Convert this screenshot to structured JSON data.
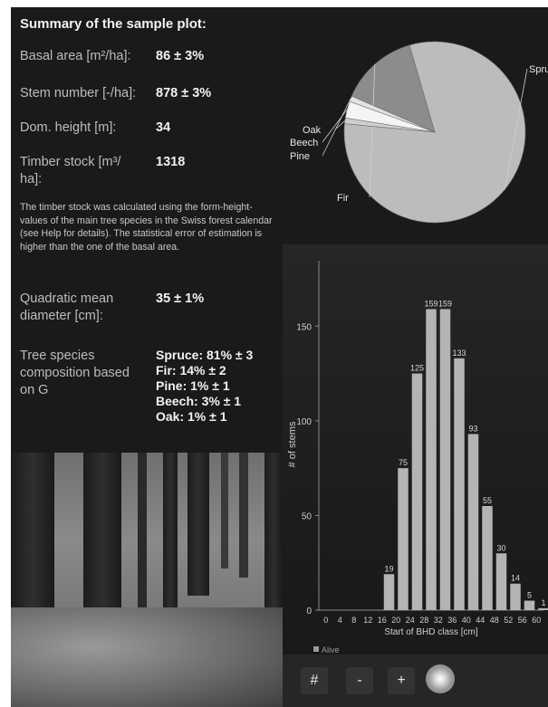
{
  "summary": {
    "title": "Summary of the sample plot:",
    "basal_area": {
      "label": "Basal area [m²/ha]:",
      "value": "86 ± 3%"
    },
    "stem_number": {
      "label": "Stem number [-/ha]:",
      "value": "878 ± 3%"
    },
    "dom_height": {
      "label": "Dom. height [m]:",
      "value": "34"
    },
    "timber_stock": {
      "label_line1": "Timber stock [m³/",
      "label_line2": "ha]:",
      "value": "1318"
    },
    "note": "The timber stock was calculated using the form-height-values of the main tree species in the Swiss forest calendar (see Help for details). The statistical error of estimation is higher than the one of the basal area.",
    "qmd": {
      "label_line1": "Quadratic mean",
      "label_line2": "diameter [cm]:",
      "value": "35 ± 1%"
    },
    "species": {
      "label_line1": "Tree species",
      "label_line2": "composition based",
      "label_line3": "on G",
      "items": [
        "Spruce: 81% ± 3",
        "Fir: 14% ± 2",
        "Pine: 1% ± 1",
        "Beech: 3% ± 1",
        "Oak: 1% ± 1"
      ]
    }
  },
  "chart_data": [
    {
      "type": "pie",
      "categories": [
        "Spruce",
        "Fir",
        "Pine",
        "Beech",
        "Oak"
      ],
      "values": [
        81,
        14,
        1,
        3,
        1
      ]
    },
    {
      "type": "bar",
      "categories": [
        "0",
        "4",
        "8",
        "12",
        "16",
        "20",
        "24",
        "28",
        "32",
        "36",
        "40",
        "44",
        "48",
        "52",
        "56",
        "60"
      ],
      "values": [
        0,
        0,
        0,
        0,
        19,
        75,
        125,
        159,
        159,
        133,
        93,
        55,
        30,
        14,
        5,
        1
      ],
      "data_labels": [
        "",
        "",
        "",
        "",
        "19",
        "75",
        "125",
        "159",
        "159",
        "133",
        "93",
        "55",
        "30",
        "14",
        "5",
        "1"
      ],
      "xlabel": "Start of BHD class [cm]",
      "ylabel": "# of stems",
      "ylim": [
        0,
        160
      ],
      "yticks": [
        "0",
        "50",
        "100",
        "150"
      ],
      "legend": "Alive"
    }
  ],
  "toolbar": {
    "hash": "#",
    "minus": "-",
    "plus": "+"
  },
  "colors": {
    "panel": "#1a1a1a",
    "bar": "#b4b4b4",
    "spruce": "#bcbcbc",
    "fir": "#8c8c8c",
    "pine": "#e2e2e2",
    "beech": "#f4f4f4",
    "oak": "#cfcfcf"
  }
}
